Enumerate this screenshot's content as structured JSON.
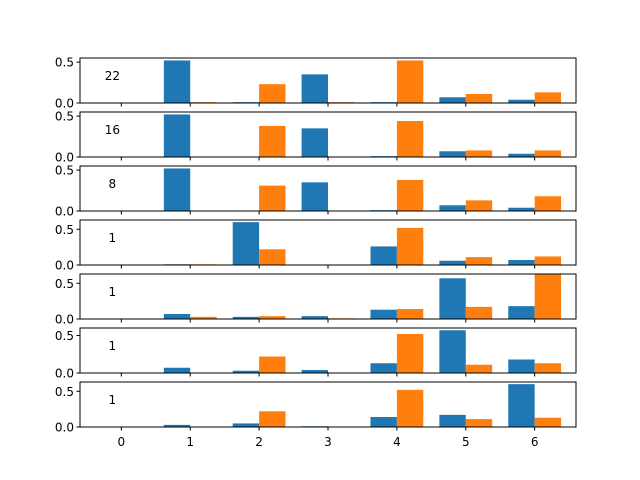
{
  "chart_data": {
    "type": "bar",
    "layout": "vertically stacked panels sharing the x axis",
    "x": [
      0,
      1,
      2,
      3,
      4,
      5,
      6
    ],
    "x_tick_labels": [
      "0",
      "1",
      "2",
      "3",
      "4",
      "5",
      "6"
    ],
    "xlim": [
      -0.6,
      6.6
    ],
    "grid": false,
    "series_colors": [
      "#1f77b4",
      "#ff7f0e"
    ],
    "panels": [
      {
        "annotation": "22",
        "ylim": [
          0,
          0.55
        ],
        "y_ticks": [
          0.0,
          0.5
        ],
        "y_tick_labels": [
          "0.0",
          "0.5"
        ],
        "series": [
          {
            "values": [
              0.0,
              0.52,
              0.01,
              0.35,
              0.01,
              0.07,
              0.04
            ]
          },
          {
            "values": [
              0.0,
              0.01,
              0.23,
              0.01,
              0.52,
              0.11,
              0.13
            ]
          }
        ]
      },
      {
        "annotation": "16",
        "ylim": [
          0,
          0.55
        ],
        "y_ticks": [
          0.0,
          0.5
        ],
        "y_tick_labels": [
          "0.0",
          "0.5"
        ],
        "series": [
          {
            "values": [
              0.0,
              0.52,
              0.0,
              0.35,
              0.01,
              0.07,
              0.04
            ]
          },
          {
            "values": [
              0.0,
              0.0,
              0.38,
              0.0,
              0.44,
              0.08,
              0.08
            ]
          }
        ]
      },
      {
        "annotation": "8",
        "ylim": [
          0,
          0.55
        ],
        "y_ticks": [
          0.0,
          0.5
        ],
        "y_tick_labels": [
          "0.0",
          "0.5"
        ],
        "series": [
          {
            "values": [
              0.0,
              0.52,
              0.0,
              0.35,
              0.01,
              0.07,
              0.04
            ]
          },
          {
            "values": [
              0.0,
              0.0,
              0.31,
              0.0,
              0.38,
              0.13,
              0.18
            ]
          }
        ]
      },
      {
        "annotation": "1",
        "ylim": [
          0,
          0.63
        ],
        "y_ticks": [
          0.0,
          0.5
        ],
        "y_tick_labels": [
          "0.0",
          "0.5"
        ],
        "series": [
          {
            "values": [
              0.0,
              0.01,
              0.6,
              0.0,
              0.26,
              0.06,
              0.07
            ]
          },
          {
            "values": [
              0.0,
              0.01,
              0.22,
              0.0,
              0.52,
              0.11,
              0.12
            ]
          }
        ]
      },
      {
        "annotation": "1",
        "ylim": [
          0,
          0.63
        ],
        "y_ticks": [
          0.0,
          0.5
        ],
        "y_tick_labels": [
          "0.0",
          "0.5"
        ],
        "series": [
          {
            "values": [
              0.0,
              0.07,
              0.03,
              0.04,
              0.13,
              0.57,
              0.18
            ]
          },
          {
            "values": [
              0.0,
              0.03,
              0.04,
              0.01,
              0.14,
              0.17,
              0.63
            ]
          }
        ]
      },
      {
        "annotation": "1",
        "ylim": [
          0,
          0.6
        ],
        "y_ticks": [
          0.0,
          0.5
        ],
        "y_tick_labels": [
          "0.0",
          "0.5"
        ],
        "series": [
          {
            "values": [
              0.0,
              0.07,
              0.03,
              0.04,
              0.13,
              0.57,
              0.18
            ]
          },
          {
            "values": [
              0.0,
              0.0,
              0.22,
              0.0,
              0.52,
              0.11,
              0.13
            ]
          }
        ]
      },
      {
        "annotation": "1",
        "ylim": [
          0,
          0.63
        ],
        "y_ticks": [
          0.0,
          0.5
        ],
        "y_tick_labels": [
          "0.0",
          "0.5"
        ],
        "series": [
          {
            "values": [
              0.0,
              0.03,
              0.05,
              0.01,
              0.14,
              0.17,
              0.6
            ]
          },
          {
            "values": [
              0.0,
              0.0,
              0.22,
              0.0,
              0.52,
              0.11,
              0.13
            ]
          }
        ]
      }
    ]
  }
}
